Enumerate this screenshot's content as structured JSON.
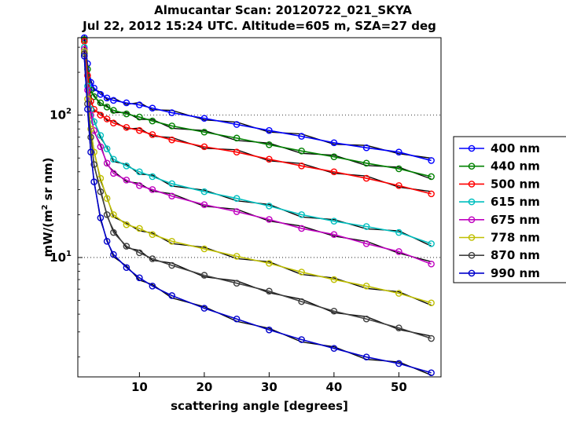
{
  "chart_data": {
    "type": "line",
    "title": "Almucantar Scan: 20120722_021_SKYA",
    "subtitle": "Jul 22, 2012 15:24 UTC. Altitude=605 m, SZA=27 deg",
    "xlabel": "scattering angle [degrees]",
    "ylabel_main": "mW/(m",
    "ylabel_sup": "2",
    "ylabel_tail": " sr nm)",
    "yscale": "log",
    "xlim": [
      0.5,
      56.5
    ],
    "ylim": [
      1.45,
      350
    ],
    "x_ticks": [
      10,
      20,
      30,
      40,
      50
    ],
    "x_tick_labels": [
      "10",
      "20",
      "30",
      "40",
      "50"
    ],
    "y_ticks": [
      10,
      100
    ],
    "y_tick_labels": [
      {
        "base": "10",
        "exp": "1"
      },
      {
        "base": "10",
        "exp": "2"
      }
    ],
    "grid": "dotted",
    "legend_position": "outside-right",
    "x": [
      1.5,
      2.0,
      2.5,
      3.0,
      4.0,
      5.0,
      6.0,
      8.0,
      10.0,
      12.0,
      15.0,
      20.0,
      25.0,
      30.0,
      35.0,
      40.0,
      45.0,
      50.0,
      55.0
    ],
    "series": [
      {
        "name": "400 nm",
        "color": "#0000ff",
        "values": [
          350,
          230,
          170,
          155,
          140,
          132,
          127,
          122,
          118,
          112,
          104,
          95,
          86,
          78,
          71,
          64,
          59,
          55,
          48
        ]
      },
      {
        "name": "440 nm",
        "color": "#008000",
        "values": [
          340,
          210,
          150,
          135,
          122,
          114,
          108,
          102,
          97,
          91,
          84,
          76,
          69,
          62,
          56,
          51,
          46,
          42,
          37
        ]
      },
      {
        "name": "500 nm",
        "color": "#ff0000",
        "values": [
          330,
          190,
          125,
          110,
          100,
          94,
          88,
          82,
          78,
          73,
          67,
          60,
          55,
          49,
          44,
          40,
          36,
          32,
          28
        ]
      },
      {
        "name": "615 nm",
        "color": "#00bfbf",
        "values": [
          300,
          160,
          110,
          90,
          72,
          58,
          49,
          44,
          40,
          37,
          33,
          29,
          26,
          23,
          20,
          18,
          16.5,
          15,
          12.5
        ]
      },
      {
        "name": "675 nm",
        "color": "#bf00bf",
        "values": [
          290,
          150,
          100,
          78,
          60,
          46,
          39,
          35,
          32,
          30,
          27,
          23.5,
          21,
          18.5,
          16,
          14.5,
          12.5,
          11,
          9
        ]
      },
      {
        "name": "778 nm",
        "color": "#bfbf00",
        "values": [
          280,
          130,
          80,
          55,
          36,
          26,
          20,
          17,
          16,
          14.5,
          13,
          11.5,
          10.2,
          9.1,
          7.9,
          7.0,
          6.3,
          5.6,
          4.8
        ]
      },
      {
        "name": "870 nm",
        "color": "#404040",
        "values": [
          270,
          120,
          70,
          45,
          29,
          20,
          15,
          12,
          10.8,
          9.8,
          8.8,
          7.5,
          6.6,
          5.8,
          4.9,
          4.2,
          3.7,
          3.2,
          2.7
        ]
      },
      {
        "name": "990 nm",
        "color": "#0000cc",
        "values": [
          260,
          110,
          55,
          34,
          19,
          13,
          10.5,
          8.5,
          7.2,
          6.3,
          5.4,
          4.4,
          3.7,
          3.1,
          2.65,
          2.3,
          2.0,
          1.8,
          1.55
        ]
      }
    ]
  }
}
